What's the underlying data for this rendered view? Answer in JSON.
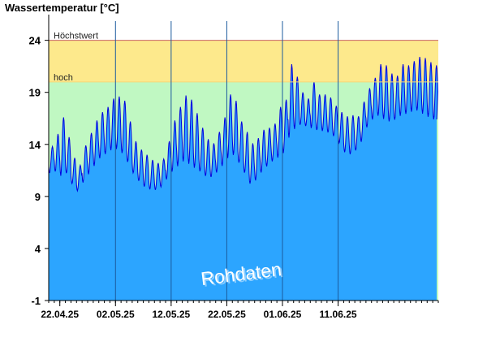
{
  "chart_data": {
    "type": "area",
    "title": "Wassertemperatur [°C]",
    "watermark": "Rohdaten",
    "x_ticks": [
      "22.04.25",
      "02.05.25",
      "12.05.25",
      "22.05.25",
      "01.06.25",
      "11.06.25"
    ],
    "x_start": "20.04.25",
    "x_end": "29.06.25",
    "y_ticks": [
      -1,
      4,
      9,
      14,
      19,
      24
    ],
    "ylim": [
      -1,
      26
    ],
    "thresholds": [
      {
        "label": "Höchstwert",
        "value": 24
      },
      {
        "label": "hoch",
        "value": 20
      }
    ],
    "series": [
      {
        "x": [
          "20.04.25",
          "21.04.25",
          "22.04.25",
          "23.04.25",
          "24.04.25",
          "25.04.25",
          "26.04.25",
          "27.04.25",
          "28.04.25",
          "29.04.25",
          "30.04.25",
          "01.05.25",
          "02.05.25",
          "03.05.25",
          "04.05.25",
          "05.05.25",
          "06.05.25",
          "07.05.25",
          "08.05.25",
          "09.05.25",
          "10.05.25",
          "11.05.25",
          "12.05.25",
          "13.05.25",
          "14.05.25",
          "15.05.25",
          "16.05.25",
          "17.05.25",
          "18.05.25",
          "19.05.25",
          "20.05.25",
          "21.05.25",
          "22.05.25",
          "23.05.25",
          "24.05.25",
          "25.05.25",
          "26.05.25",
          "27.05.25",
          "28.05.25",
          "29.05.25",
          "30.05.25",
          "31.05.25",
          "01.06.25",
          "02.06.25",
          "03.06.25",
          "04.06.25",
          "05.06.25",
          "06.06.25",
          "07.06.25",
          "08.06.25",
          "09.06.25",
          "10.06.25",
          "11.06.25",
          "12.06.25",
          "13.06.25",
          "14.06.25",
          "15.06.25",
          "16.06.25",
          "17.06.25",
          "18.06.25",
          "19.06.25",
          "20.06.25",
          "21.06.25",
          "22.06.25",
          "23.06.25",
          "24.06.25",
          "25.06.25",
          "26.06.25",
          "27.06.25",
          "28.06.25"
        ],
        "min": [
          11.2,
          11.5,
          10.9,
          11.4,
          10.4,
          9.4,
          10.2,
          11.0,
          11.8,
          12.6,
          13.0,
          13.4,
          13.6,
          13.3,
          12.5,
          11.4,
          10.6,
          10.0,
          9.7,
          9.6,
          9.8,
          10.5,
          11.3,
          11.8,
          12.4,
          12.2,
          11.8,
          11.5,
          11.0,
          10.8,
          11.2,
          11.8,
          12.6,
          13.1,
          12.4,
          11.5,
          10.2,
          10.4,
          11.2,
          11.8,
          12.3,
          12.7,
          12.9,
          14.5,
          15.4,
          15.9,
          15.8,
          15.6,
          15.4,
          15.3,
          15.2,
          14.9,
          14.3,
          13.3,
          13.0,
          13.3,
          14.0,
          15.5,
          16.3,
          16.8,
          16.5,
          16.2,
          16.3,
          16.7,
          16.9,
          17.1,
          17.3,
          17.0,
          16.7,
          16.4
        ],
        "max": [
          13.8,
          15.0,
          16.6,
          14.7,
          12.7,
          12.0,
          13.9,
          15.1,
          16.3,
          17.1,
          17.6,
          18.4,
          18.6,
          18.2,
          16.2,
          14.3,
          13.5,
          13.0,
          12.5,
          12.2,
          12.6,
          14.3,
          16.3,
          17.6,
          18.7,
          18.3,
          17.0,
          15.6,
          14.5,
          14.1,
          15.2,
          16.6,
          18.8,
          18.2,
          16.2,
          15.2,
          14.1,
          14.6,
          15.4,
          15.6,
          16.0,
          17.6,
          18.3,
          21.7,
          20.5,
          19.0,
          18.4,
          20.0,
          18.8,
          18.8,
          18.5,
          17.7,
          17.1,
          16.7,
          16.8,
          16.7,
          18.1,
          19.4,
          20.4,
          21.7,
          21.6,
          20.8,
          20.6,
          21.7,
          21.6,
          22.0,
          22.4,
          22.3,
          21.9,
          21.6
        ]
      }
    ]
  }
}
